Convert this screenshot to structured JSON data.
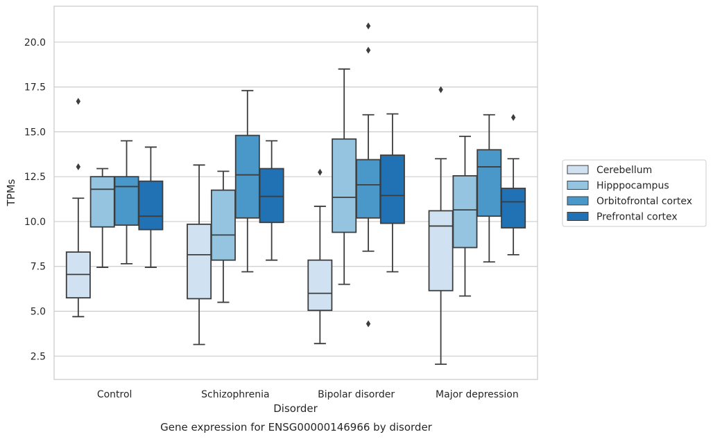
{
  "chart_data": {
    "type": "box",
    "caption": "Gene expression for ENSG00000146966 by disorder",
    "xlabel": "Disorder",
    "ylabel": "TPMs",
    "ylim": [
      1.2,
      22.0
    ],
    "yticks": [
      2.5,
      5.0,
      7.5,
      10.0,
      12.5,
      15.0,
      17.5,
      20.0
    ],
    "ytick_labels": [
      "2.5",
      "5.0",
      "7.5",
      "10.0",
      "12.5",
      "15.0",
      "17.5",
      "20.0"
    ],
    "grid": "horizontal",
    "legend_position": "right",
    "categories": [
      "Control",
      "Schizophrenia",
      "Bipolar disorder",
      "Major depression"
    ],
    "series": [
      {
        "name": "Cerebellum",
        "color": "#d0e1f2",
        "boxes": [
          {
            "whislo": 4.7,
            "q1": 5.75,
            "med": 7.05,
            "q3": 8.3,
            "whishi": 11.3,
            "fliers": [
              13.05,
              16.7
            ]
          },
          {
            "whislo": 3.15,
            "q1": 5.7,
            "med": 8.15,
            "q3": 9.85,
            "whishi": 13.15,
            "fliers": []
          },
          {
            "whislo": 3.2,
            "q1": 5.05,
            "med": 6.0,
            "q3": 7.85,
            "whishi": 10.85,
            "fliers": [
              12.75
            ]
          },
          {
            "whislo": 2.05,
            "q1": 6.15,
            "med": 9.75,
            "q3": 10.6,
            "whishi": 13.5,
            "fliers": [
              17.35
            ]
          }
        ]
      },
      {
        "name": "Hipppocampus",
        "color": "#94c4df",
        "boxes": [
          {
            "whislo": 7.45,
            "q1": 9.7,
            "med": 11.8,
            "q3": 12.5,
            "whishi": 12.95,
            "fliers": []
          },
          {
            "whislo": 5.5,
            "q1": 7.85,
            "med": 9.25,
            "q3": 11.75,
            "whishi": 12.8,
            "fliers": []
          },
          {
            "whislo": 6.5,
            "q1": 9.4,
            "med": 11.35,
            "q3": 14.6,
            "whishi": 18.5,
            "fliers": []
          },
          {
            "whislo": 5.85,
            "q1": 8.55,
            "med": 10.65,
            "q3": 12.55,
            "whishi": 14.75,
            "fliers": []
          }
        ]
      },
      {
        "name": "Orbitofrontal cortex",
        "color": "#4a98c9",
        "boxes": [
          {
            "whislo": 7.65,
            "q1": 9.8,
            "med": 11.95,
            "q3": 12.5,
            "whishi": 14.5,
            "fliers": []
          },
          {
            "whislo": 7.2,
            "q1": 10.2,
            "med": 12.6,
            "q3": 14.8,
            "whishi": 17.3,
            "fliers": []
          },
          {
            "whislo": 8.35,
            "q1": 10.2,
            "med": 12.05,
            "q3": 13.45,
            "whishi": 15.95,
            "fliers": [
              4.3,
              19.55,
              20.9
            ]
          },
          {
            "whislo": 7.75,
            "q1": 10.3,
            "med": 13.05,
            "q3": 14.0,
            "whishi": 15.95,
            "fliers": []
          }
        ]
      },
      {
        "name": "Prefrontal cortex",
        "color": "#2171b5",
        "boxes": [
          {
            "whislo": 7.45,
            "q1": 9.55,
            "med": 10.3,
            "q3": 12.25,
            "whishi": 14.15,
            "fliers": []
          },
          {
            "whislo": 7.85,
            "q1": 9.95,
            "med": 11.4,
            "q3": 12.95,
            "whishi": 14.5,
            "fliers": []
          },
          {
            "whislo": 7.2,
            "q1": 9.9,
            "med": 11.45,
            "q3": 13.7,
            "whishi": 16.0,
            "fliers": []
          },
          {
            "whislo": 8.15,
            "q1": 9.65,
            "med": 11.1,
            "q3": 11.85,
            "whishi": 13.5,
            "fliers": [
              15.8
            ]
          }
        ]
      }
    ]
  }
}
